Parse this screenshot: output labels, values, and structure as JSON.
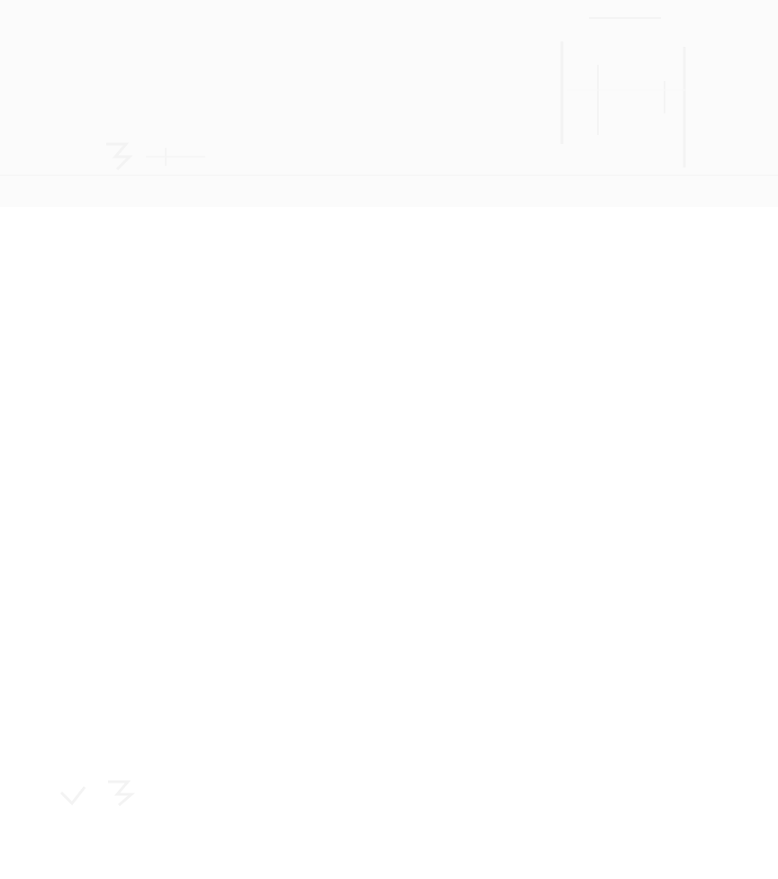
{
  "page": {
    "background": "#ffffff"
  },
  "visible_text": [],
  "icons": [],
  "colors": {
    "canvas": "#ffffff",
    "faint_marks": "#f3f3f3"
  }
}
